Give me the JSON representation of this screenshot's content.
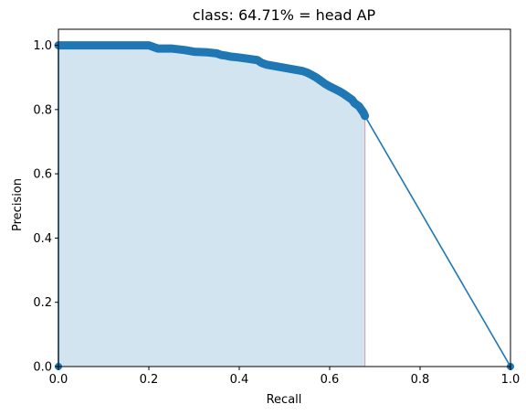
{
  "chart_data": {
    "type": "line",
    "title": "class: 64.71% = head AP",
    "xlabel": "Recall",
    "ylabel": "Precision",
    "xlim": [
      0,
      1
    ],
    "ylim": [
      0,
      1.05
    ],
    "xticks": [
      0.0,
      0.2,
      0.4,
      0.6,
      0.8,
      1.0
    ],
    "yticks": [
      0.0,
      0.2,
      0.4,
      0.6,
      0.8,
      1.0
    ],
    "xtick_labels": [
      "0.0",
      "0.2",
      "0.4",
      "0.6",
      "0.8",
      "1.0"
    ],
    "ytick_labels": [
      "0.0",
      "0.2",
      "0.4",
      "0.6",
      "0.8",
      "1.0"
    ],
    "grid": false,
    "legend": false,
    "series": [
      {
        "name": "precision-recall",
        "color": "#1f77b4",
        "x": [
          0.0,
          0.0,
          0.02,
          0.05,
          0.1,
          0.15,
          0.2,
          0.21,
          0.22,
          0.25,
          0.28,
          0.3,
          0.33,
          0.35,
          0.36,
          0.37,
          0.38,
          0.4,
          0.42,
          0.44,
          0.45,
          0.46,
          0.48,
          0.5,
          0.52,
          0.54,
          0.55,
          0.56,
          0.57,
          0.58,
          0.59,
          0.6,
          0.61,
          0.62,
          0.63,
          0.64,
          0.65,
          0.655,
          0.66,
          0.665,
          0.67,
          0.675,
          0.678,
          1.0
        ],
        "y": [
          0.0,
          1.0,
          1.0,
          1.0,
          1.0,
          1.0,
          1.0,
          0.995,
          0.99,
          0.99,
          0.985,
          0.98,
          0.978,
          0.975,
          0.97,
          0.968,
          0.965,
          0.962,
          0.958,
          0.954,
          0.945,
          0.94,
          0.935,
          0.93,
          0.925,
          0.92,
          0.915,
          0.908,
          0.9,
          0.89,
          0.88,
          0.872,
          0.865,
          0.858,
          0.85,
          0.84,
          0.83,
          0.82,
          0.815,
          0.81,
          0.8,
          0.79,
          0.78,
          0.0
        ]
      }
    ],
    "fill": {
      "color": "#1f77b4",
      "opacity": 0.2,
      "edge_color": "#d8a8b0",
      "x": [
        0.0,
        0.0,
        0.2,
        0.21,
        0.22,
        0.25,
        0.28,
        0.3,
        0.33,
        0.35,
        0.36,
        0.37,
        0.38,
        0.4,
        0.42,
        0.44,
        0.45,
        0.46,
        0.48,
        0.5,
        0.52,
        0.54,
        0.55,
        0.56,
        0.57,
        0.58,
        0.59,
        0.6,
        0.61,
        0.62,
        0.63,
        0.64,
        0.65,
        0.655,
        0.66,
        0.665,
        0.67,
        0.675,
        0.678,
        0.678
      ],
      "y": [
        0.0,
        1.0,
        1.0,
        0.995,
        0.99,
        0.99,
        0.985,
        0.98,
        0.978,
        0.975,
        0.97,
        0.968,
        0.965,
        0.962,
        0.958,
        0.954,
        0.945,
        0.94,
        0.935,
        0.93,
        0.925,
        0.92,
        0.915,
        0.908,
        0.9,
        0.89,
        0.88,
        0.872,
        0.865,
        0.858,
        0.85,
        0.84,
        0.83,
        0.82,
        0.815,
        0.81,
        0.8,
        0.79,
        0.78,
        0.0
      ]
    }
  }
}
